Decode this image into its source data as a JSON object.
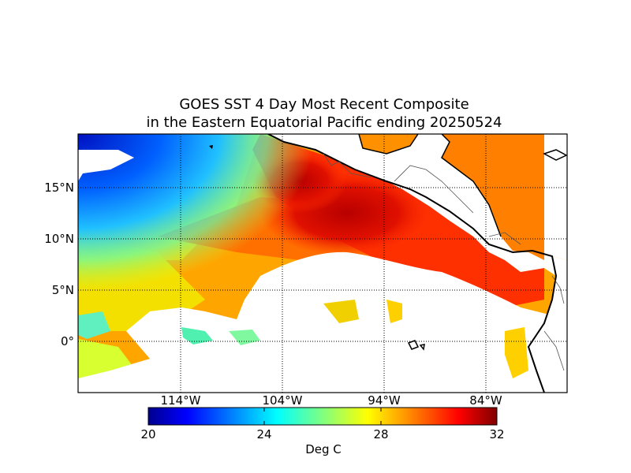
{
  "title": {
    "line1": "GOES SST 4 Day Most Recent Composite",
    "line2": "in the Eastern Equatorial Pacific ending 20250524"
  },
  "map": {
    "lon_range": [
      -124,
      -76
    ],
    "lat_range": [
      -5,
      20
    ],
    "lat_ticks": [
      {
        "value": 15,
        "label": "15°N"
      },
      {
        "value": 10,
        "label": "10°N"
      },
      {
        "value": 5,
        "label": "5°N"
      },
      {
        "value": 0,
        "label": "0°"
      }
    ],
    "lon_ticks": [
      {
        "value": -114,
        "label": "114°W"
      },
      {
        "value": -104,
        "label": "104°W"
      },
      {
        "value": -94,
        "label": "94°W"
      },
      {
        "value": -84,
        "label": "84°W"
      }
    ],
    "grid": "dotted"
  },
  "colorbar": {
    "label": "Deg C",
    "min": 20,
    "max": 32,
    "ticks": [
      "20",
      "24",
      "28",
      "32"
    ],
    "colormap": [
      "#00008f",
      "#0000ff",
      "#0080ff",
      "#00ffff",
      "#80ff80",
      "#ffff00",
      "#ff8000",
      "#ff0000",
      "#800000"
    ]
  },
  "colors": {
    "land": "#ffffff",
    "no_data": "#ffffff",
    "coastline": "#000000",
    "borders": "#555555"
  }
}
